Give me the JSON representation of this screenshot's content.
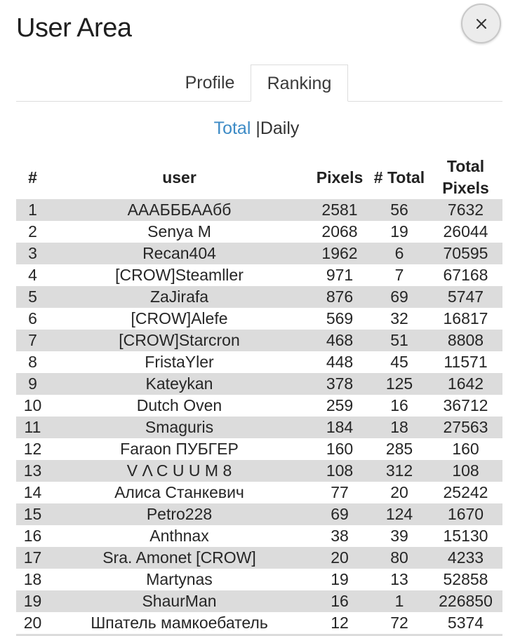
{
  "header": {
    "title": "User Area",
    "close_icon": "close-icon"
  },
  "tabs": [
    {
      "label": "Profile",
      "active": false
    },
    {
      "label": "Ranking",
      "active": true
    }
  ],
  "ranking_switch": {
    "total": "Total",
    "separator": "|",
    "daily": "Daily",
    "active": "Total",
    "active_color": "#3d8bc6"
  },
  "table": {
    "columns": [
      "#",
      "user",
      "Pixels",
      "# Total",
      "Total Pixels"
    ],
    "rows": [
      {
        "rank": "1",
        "user": "АААБББААбб",
        "pixels": "2581",
        "total_rank": "56",
        "total_pixels": "7632"
      },
      {
        "rank": "2",
        "user": "Senya M",
        "pixels": "2068",
        "total_rank": "19",
        "total_pixels": "26044"
      },
      {
        "rank": "3",
        "user": "Recan404",
        "pixels": "1962",
        "total_rank": "6",
        "total_pixels": "70595"
      },
      {
        "rank": "4",
        "user": "[CROW]Steamller",
        "pixels": "971",
        "total_rank": "7",
        "total_pixels": "67168"
      },
      {
        "rank": "5",
        "user": "ZaJirafa",
        "pixels": "876",
        "total_rank": "69",
        "total_pixels": "5747"
      },
      {
        "rank": "6",
        "user": "[CROW]Alefe",
        "pixels": "569",
        "total_rank": "32",
        "total_pixels": "16817"
      },
      {
        "rank": "7",
        "user": "[CROW]Starcron",
        "pixels": "468",
        "total_rank": "51",
        "total_pixels": "8808"
      },
      {
        "rank": "8",
        "user": "FristaYler",
        "pixels": "448",
        "total_rank": "45",
        "total_pixels": "11571"
      },
      {
        "rank": "9",
        "user": "Kateykan",
        "pixels": "378",
        "total_rank": "125",
        "total_pixels": "1642"
      },
      {
        "rank": "10",
        "user": "Dutch Oven",
        "pixels": "259",
        "total_rank": "16",
        "total_pixels": "36712"
      },
      {
        "rank": "11",
        "user": "Smaguris",
        "pixels": "184",
        "total_rank": "18",
        "total_pixels": "27563"
      },
      {
        "rank": "12",
        "user": "Faraon ПУБГЕР",
        "pixels": "160",
        "total_rank": "285",
        "total_pixels": "160"
      },
      {
        "rank": "13",
        "user": "V Λ C U U M 8",
        "pixels": "108",
        "total_rank": "312",
        "total_pixels": "108"
      },
      {
        "rank": "14",
        "user": "Алиса Станкевич",
        "pixels": "77",
        "total_rank": "20",
        "total_pixels": "25242"
      },
      {
        "rank": "15",
        "user": "Petro228",
        "pixels": "69",
        "total_rank": "124",
        "total_pixels": "1670"
      },
      {
        "rank": "16",
        "user": "Anthnax",
        "pixels": "38",
        "total_rank": "39",
        "total_pixels": "15130"
      },
      {
        "rank": "17",
        "user": "Sra. Amonet [CROW]",
        "pixels": "20",
        "total_rank": "80",
        "total_pixels": "4233"
      },
      {
        "rank": "18",
        "user": "Martynas",
        "pixels": "19",
        "total_rank": "13",
        "total_pixels": "52858"
      },
      {
        "rank": "19",
        "user": "ShaurMan",
        "pixels": "16",
        "total_rank": "1",
        "total_pixels": "226850"
      },
      {
        "rank": "20",
        "user": "Шпатель мамкоебатель",
        "pixels": "12",
        "total_rank": "72",
        "total_pixels": "5374"
      }
    ]
  }
}
